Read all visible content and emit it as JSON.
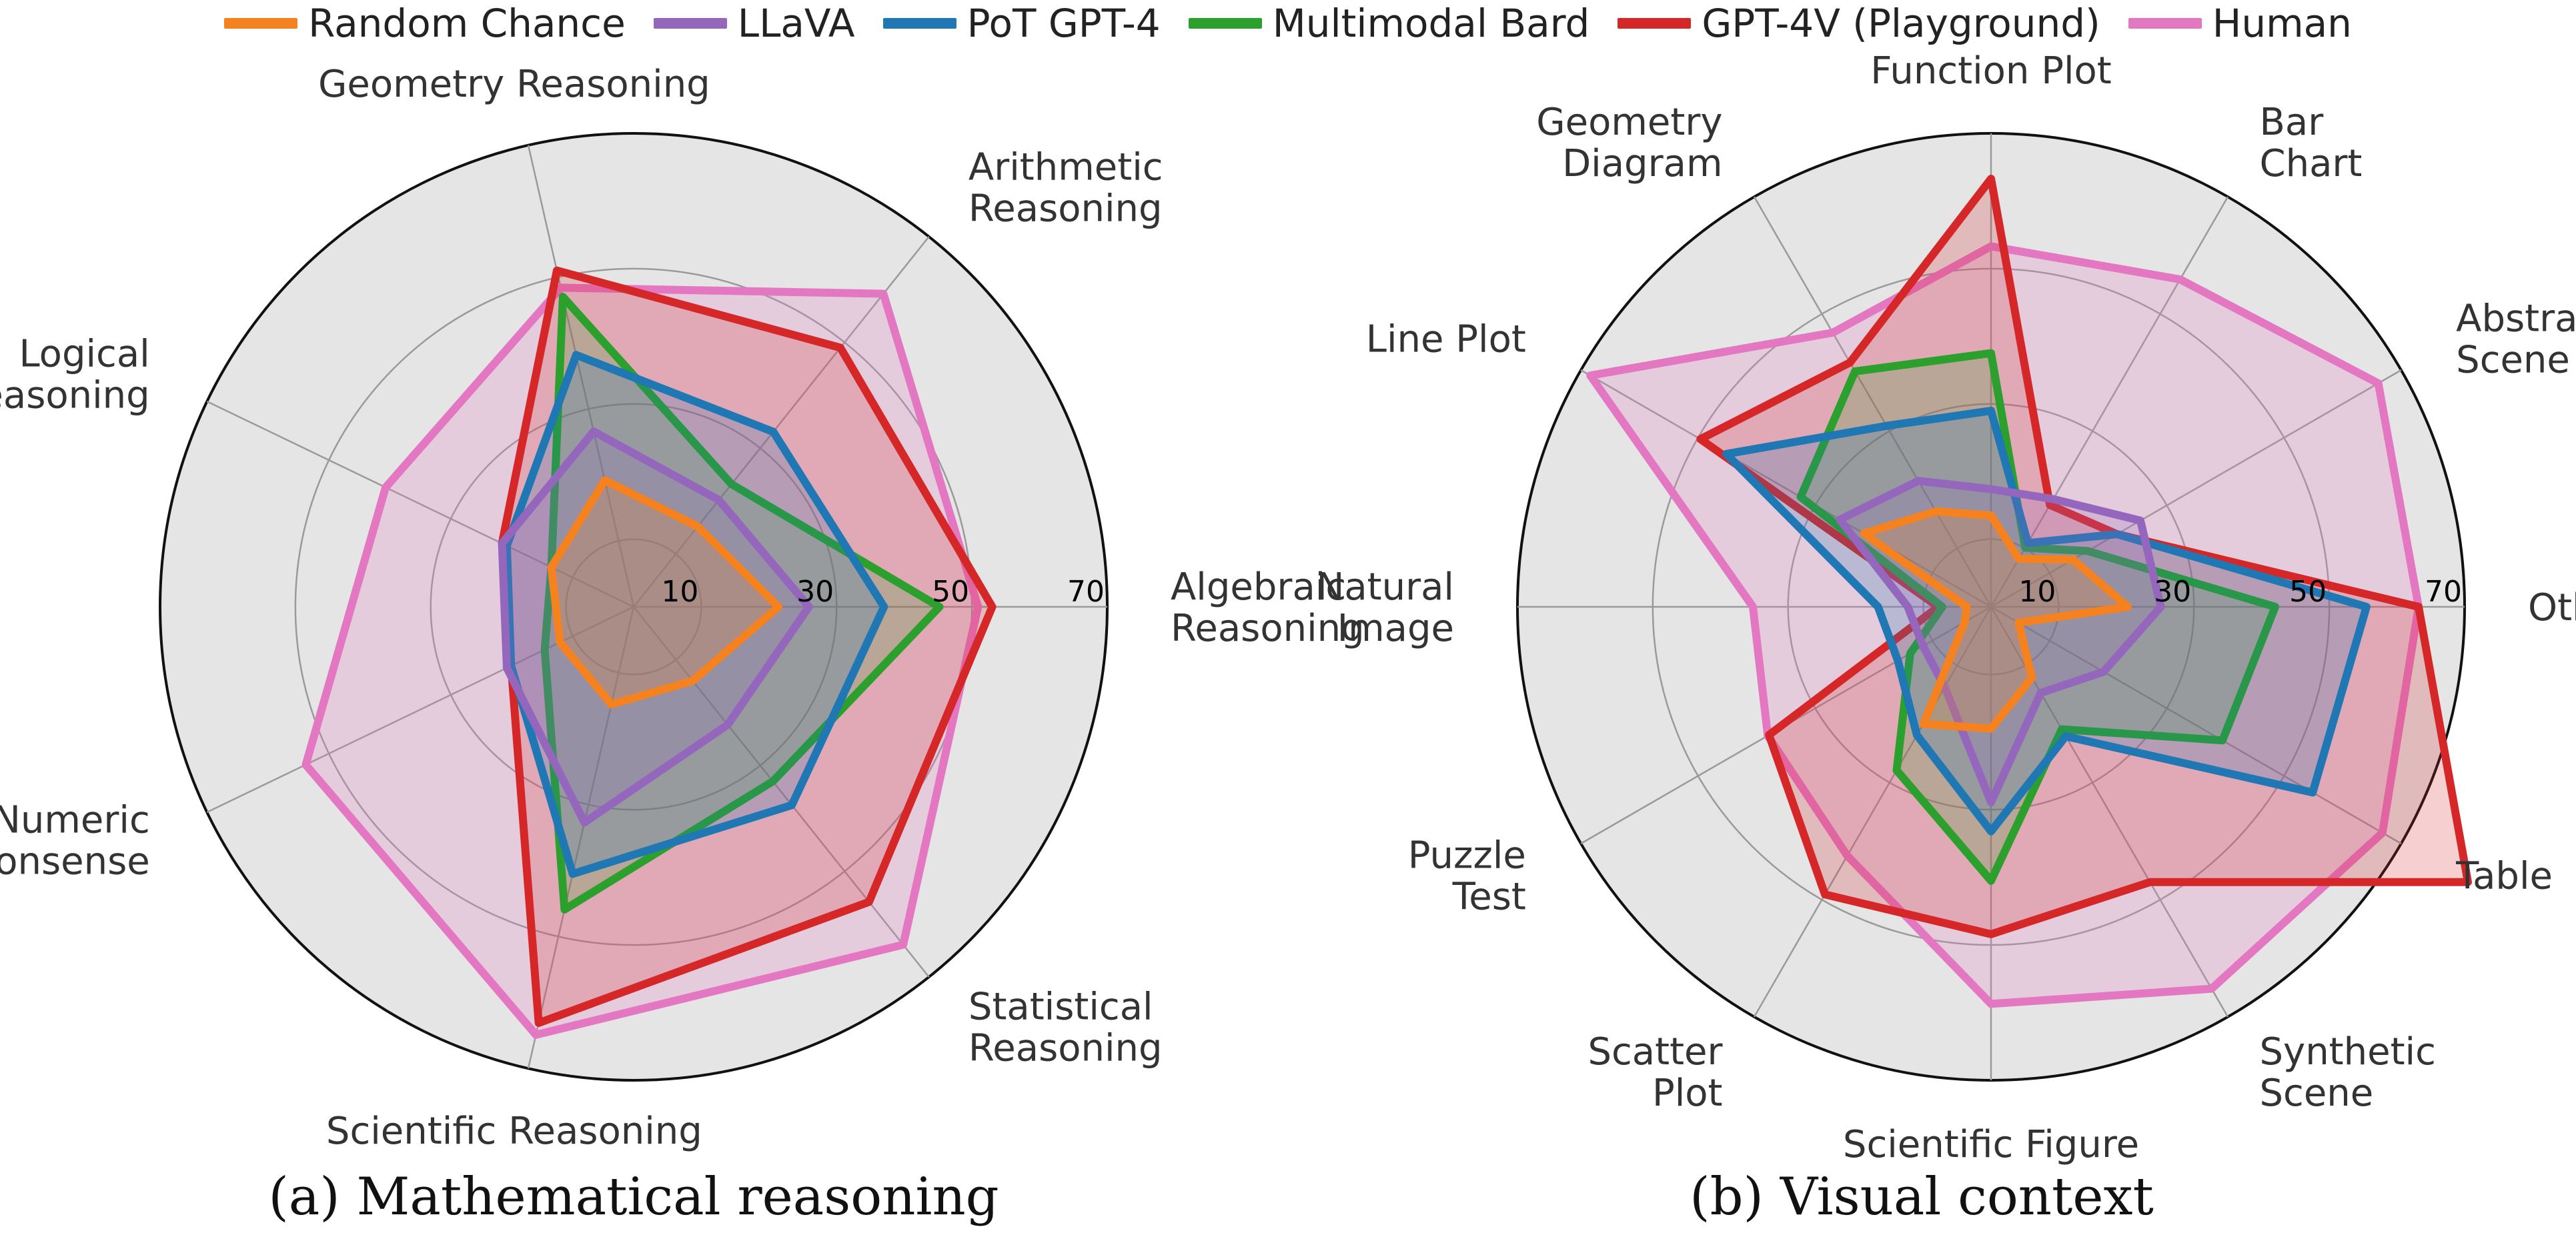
{
  "legend": [
    {
      "name": "Random Chance",
      "color": "#f5821f"
    },
    {
      "name": "LLaVA",
      "color": "#9467bd"
    },
    {
      "name": "PoT GPT-4",
      "color": "#1f77b4"
    },
    {
      "name": "Multimodal Bard",
      "color": "#2ca02c"
    },
    {
      "name": "GPT-4V (Playground)",
      "color": "#d62728"
    },
    {
      "name": "Human",
      "color": "#e377c2"
    }
  ],
  "chart_data": [
    {
      "type": "radar",
      "caption": "(a) Mathematical reasoning",
      "radial_ticks": [
        10,
        30,
        50,
        70
      ],
      "rlim": [
        0,
        70
      ],
      "grid": true,
      "axes": [
        {
          "label": [
            "Algebraic",
            "Reasoning"
          ]
        },
        {
          "label": [
            "Arithmetic",
            "Reasoning"
          ]
        },
        {
          "label": [
            "Geometry Reasoning"
          ]
        },
        {
          "label": [
            "Logical",
            "Reasoning"
          ]
        },
        {
          "label": [
            "Numeric",
            "Commonsense"
          ]
        },
        {
          "label": [
            "Scientific Reasoning"
          ]
        },
        {
          "label": [
            "Statistical",
            "Reasoning"
          ]
        }
      ],
      "series": [
        {
          "name": "Human",
          "values": [
            50.9,
            59.2,
            48.4,
            40.7,
            53.8,
            64.9,
            63.9
          ]
        },
        {
          "name": "GPT-4V (Playground)",
          "values": [
            53.0,
            49.0,
            51.0,
            21.6,
            20.1,
            63.1,
            55.8
          ]
        },
        {
          "name": "Multimodal Bard",
          "values": [
            45.2,
            23.2,
            47.0,
            13.5,
            14.6,
            45.9,
            33.0
          ]
        },
        {
          "name": "PoT GPT-4",
          "values": [
            37.0,
            33.1,
            38.2,
            20.8,
            20.1,
            40.5,
            37.5
          ]
        },
        {
          "name": "LLaVA",
          "values": [
            25.9,
            20.2,
            26.6,
            21.6,
            20.8,
            32.7,
            22.3
          ]
        },
        {
          "name": "Random Chance",
          "values": [
            21.4,
            15.2,
            19.2,
            13.5,
            12.1,
            14.8,
            14.0
          ]
        }
      ]
    },
    {
      "type": "radar",
      "caption": "(b) Visual context",
      "radial_ticks": [
        10,
        30,
        50,
        70
      ],
      "rlim": [
        0,
        70
      ],
      "grid": true,
      "axes": [
        {
          "label": [
            "Other"
          ]
        },
        {
          "label": [
            "Abstract",
            "Scene"
          ]
        },
        {
          "label": [
            "Bar",
            "Chart"
          ]
        },
        {
          "label": [
            "Function Plot"
          ]
        },
        {
          "label": [
            "Geometry",
            "Diagram"
          ]
        },
        {
          "label": [
            "Line Plot"
          ]
        },
        {
          "label": [
            "Natural",
            "Image"
          ]
        },
        {
          "label": [
            "Puzzle",
            "Test"
          ]
        },
        {
          "label": [
            "Scatter",
            "Plot"
          ]
        },
        {
          "label": [
            "Scientific Figure"
          ]
        },
        {
          "label": [
            "Synthetic",
            "Scene"
          ]
        },
        {
          "label": [
            "Table"
          ]
        }
      ],
      "series": [
        {
          "name": "Human",
          "values": [
            63.2,
            66.1,
            55.9,
            53.3,
            46.8,
            68.4,
            35.2,
            38.1,
            42.5,
            58.7,
            65.2,
            66.8
          ]
        },
        {
          "name": "GPT-4V (Playground)",
          "values": [
            63.2,
            21.5,
            17.4,
            63.3,
            41.7,
            49.6,
            7.8,
            37.9,
            49.1,
            48.4,
            47.0,
            81.4
          ]
        },
        {
          "name": "Multimodal Bard",
          "values": [
            42.0,
            16.5,
            10.1,
            37.5,
            40.2,
            32.5,
            7.2,
            13.8,
            27.9,
            40.5,
            20.9,
            39.5
          ]
        },
        {
          "name": "PoT GPT-4",
          "values": [
            55.5,
            21.5,
            10.9,
            29.0,
            30.9,
            45.2,
            16.7,
            15.9,
            21.9,
            33.2,
            22.1,
            54.9
          ]
        },
        {
          "name": "LLaVA",
          "values": [
            25.1,
            25.5,
            18.4,
            17.4,
            21.5,
            25.8,
            12.3,
            11.6,
            13.7,
            28.9,
            14.7,
            19.2
          ]
        },
        {
          "name": "Random Chance",
          "values": [
            20.2,
            14.0,
            8.2,
            13.5,
            16.3,
            21.7,
            3.6,
            4.5,
            20.0,
            18.0,
            12.1,
            4.7
          ]
        }
      ]
    }
  ]
}
